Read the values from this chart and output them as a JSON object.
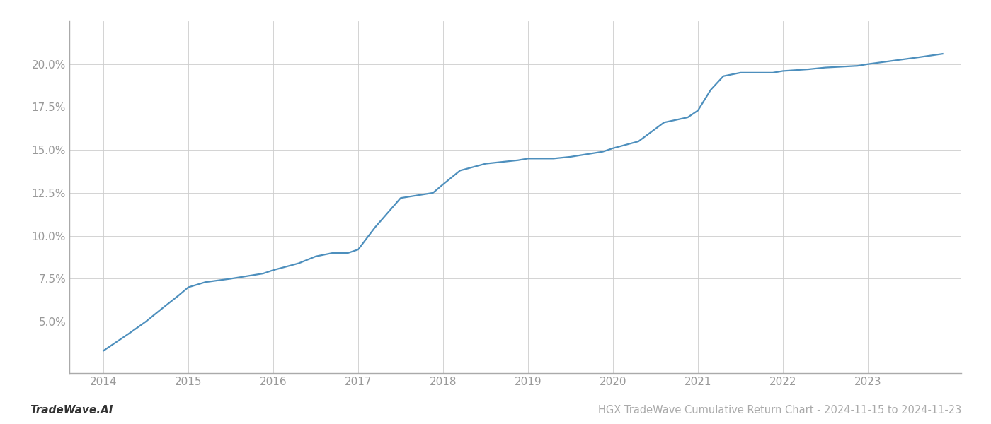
{
  "title": "HGX TradeWave Cumulative Return Chart - 2024-11-15 to 2024-11-23",
  "watermark": "TradeWave.AI",
  "line_color": "#4d8fbd",
  "background_color": "#ffffff",
  "grid_color": "#cccccc",
  "x_values": [
    2014.0,
    2014.15,
    2014.3,
    2014.5,
    2014.7,
    2014.88,
    2015.0,
    2015.2,
    2015.5,
    2015.88,
    2016.0,
    2016.3,
    2016.5,
    2016.7,
    2016.88,
    2017.0,
    2017.2,
    2017.5,
    2017.88,
    2018.0,
    2018.2,
    2018.5,
    2018.88,
    2019.0,
    2019.3,
    2019.5,
    2019.88,
    2020.0,
    2020.3,
    2020.6,
    2020.88,
    2021.0,
    2021.15,
    2021.3,
    2021.5,
    2021.88,
    2022.0,
    2022.3,
    2022.5,
    2022.88,
    2023.0,
    2023.3,
    2023.6,
    2023.88
  ],
  "y_values": [
    3.3,
    3.8,
    4.3,
    5.0,
    5.8,
    6.5,
    7.0,
    7.3,
    7.5,
    7.8,
    8.0,
    8.4,
    8.8,
    9.0,
    9.0,
    9.2,
    10.5,
    12.2,
    12.5,
    13.0,
    13.8,
    14.2,
    14.4,
    14.5,
    14.5,
    14.6,
    14.9,
    15.1,
    15.5,
    16.6,
    16.9,
    17.3,
    18.5,
    19.3,
    19.5,
    19.5,
    19.6,
    19.7,
    19.8,
    19.9,
    20.0,
    20.2,
    20.4,
    20.6
  ],
  "xlim": [
    2013.6,
    2024.1
  ],
  "ylim": [
    2.0,
    22.5
  ],
  "yticks": [
    5.0,
    7.5,
    10.0,
    12.5,
    15.0,
    17.5,
    20.0
  ],
  "xticks": [
    2014,
    2015,
    2016,
    2017,
    2018,
    2019,
    2020,
    2021,
    2022,
    2023
  ],
  "line_width": 1.6,
  "title_fontsize": 10.5,
  "watermark_fontsize": 11,
  "tick_fontsize": 11,
  "tick_color": "#999999",
  "axis_line_color": "#aaaaaa",
  "bottom_text_color": "#aaaaaa"
}
